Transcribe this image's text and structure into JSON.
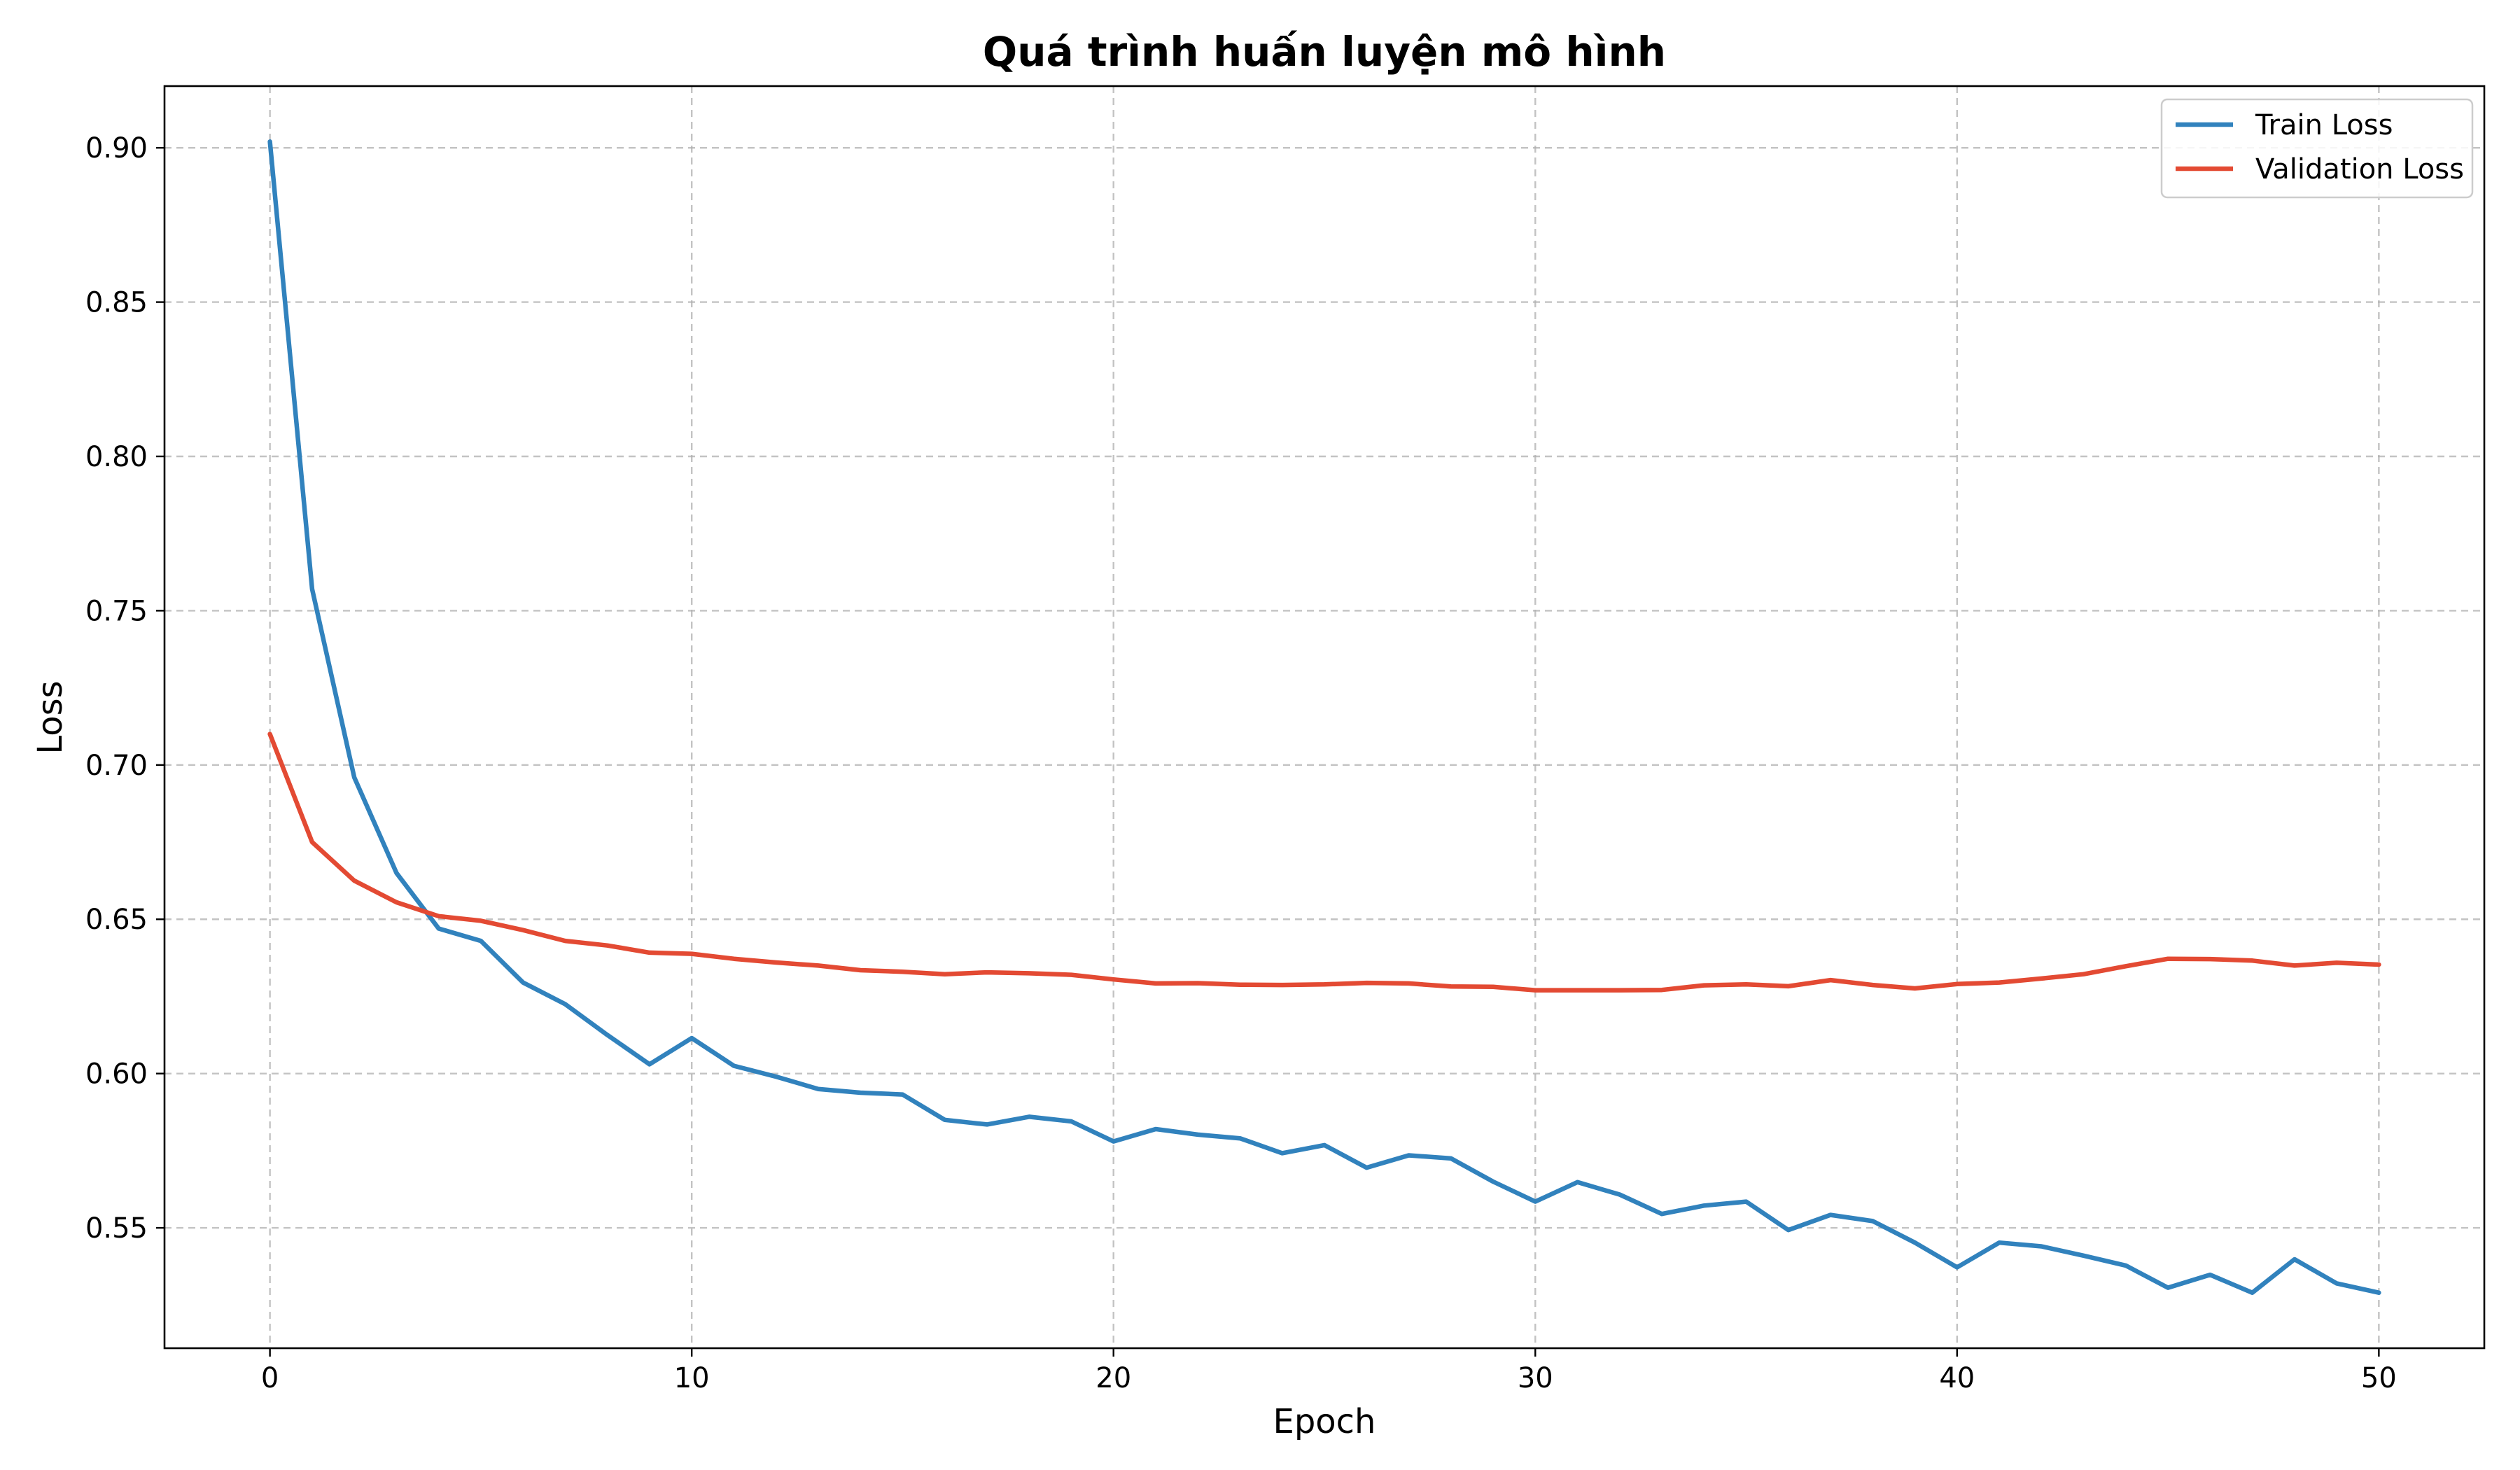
{
  "chart_data": {
    "type": "line",
    "title": "Quá trình huấn luyện mô hình",
    "xlabel": "Epoch",
    "ylabel": "Loss",
    "xlim": [
      -2.5,
      52.5
    ],
    "ylim": [
      0.511,
      0.92
    ],
    "xticks": [
      0,
      10,
      20,
      30,
      40,
      50
    ],
    "yticks": [
      0.55,
      0.6,
      0.65,
      0.7,
      0.75,
      0.8,
      0.85,
      0.9
    ],
    "ytick_labels": [
      "0.55",
      "0.60",
      "0.65",
      "0.70",
      "0.75",
      "0.80",
      "0.85",
      "0.90"
    ],
    "grid": true,
    "legend_position": "top-right",
    "x": [
      0,
      1,
      2,
      3,
      4,
      5,
      6,
      7,
      8,
      9,
      10,
      11,
      12,
      13,
      14,
      15,
      16,
      17,
      18,
      19,
      20,
      21,
      22,
      23,
      24,
      25,
      26,
      27,
      28,
      29,
      30,
      31,
      32,
      33,
      34,
      35,
      36,
      37,
      38,
      39,
      40,
      41,
      42,
      43,
      44,
      45,
      46,
      47,
      48,
      49,
      50
    ],
    "series": [
      {
        "name": "Train Loss",
        "color": "#3182bd",
        "values": [
          0.902,
          0.757,
          0.696,
          0.665,
          0.647,
          0.643,
          0.6295,
          0.6225,
          0.6125,
          0.603,
          0.6115,
          0.6025,
          0.599,
          0.595,
          0.5938,
          0.5932,
          0.585,
          0.5835,
          0.586,
          0.5845,
          0.578,
          0.582,
          0.5802,
          0.579,
          0.5742,
          0.5768,
          0.5695,
          0.5735,
          0.5725,
          0.565,
          0.5585,
          0.5648,
          0.5608,
          0.5545,
          0.5572,
          0.5585,
          0.5493,
          0.5542,
          0.5522,
          0.5452,
          0.5372,
          0.5452,
          0.544,
          0.541,
          0.5378,
          0.5306,
          0.5348,
          0.529,
          0.5398,
          0.532,
          0.529
        ]
      },
      {
        "name": "Validation Loss",
        "color": "#e34a33",
        "values": [
          0.71,
          0.675,
          0.6625,
          0.6555,
          0.651,
          0.6495,
          0.6465,
          0.643,
          0.6415,
          0.6392,
          0.6388,
          0.6372,
          0.636,
          0.635,
          0.6335,
          0.633,
          0.6322,
          0.6328,
          0.6325,
          0.632,
          0.6305,
          0.6292,
          0.6293,
          0.6288,
          0.6287,
          0.6289,
          0.6294,
          0.6292,
          0.6282,
          0.6281,
          0.627,
          0.627,
          0.627,
          0.6271,
          0.6286,
          0.6289,
          0.6283,
          0.6303,
          0.6287,
          0.6276,
          0.629,
          0.6295,
          0.6308,
          0.6322,
          0.6348,
          0.6372,
          0.6371,
          0.6366,
          0.635,
          0.6359,
          0.6353
        ]
      }
    ]
  }
}
